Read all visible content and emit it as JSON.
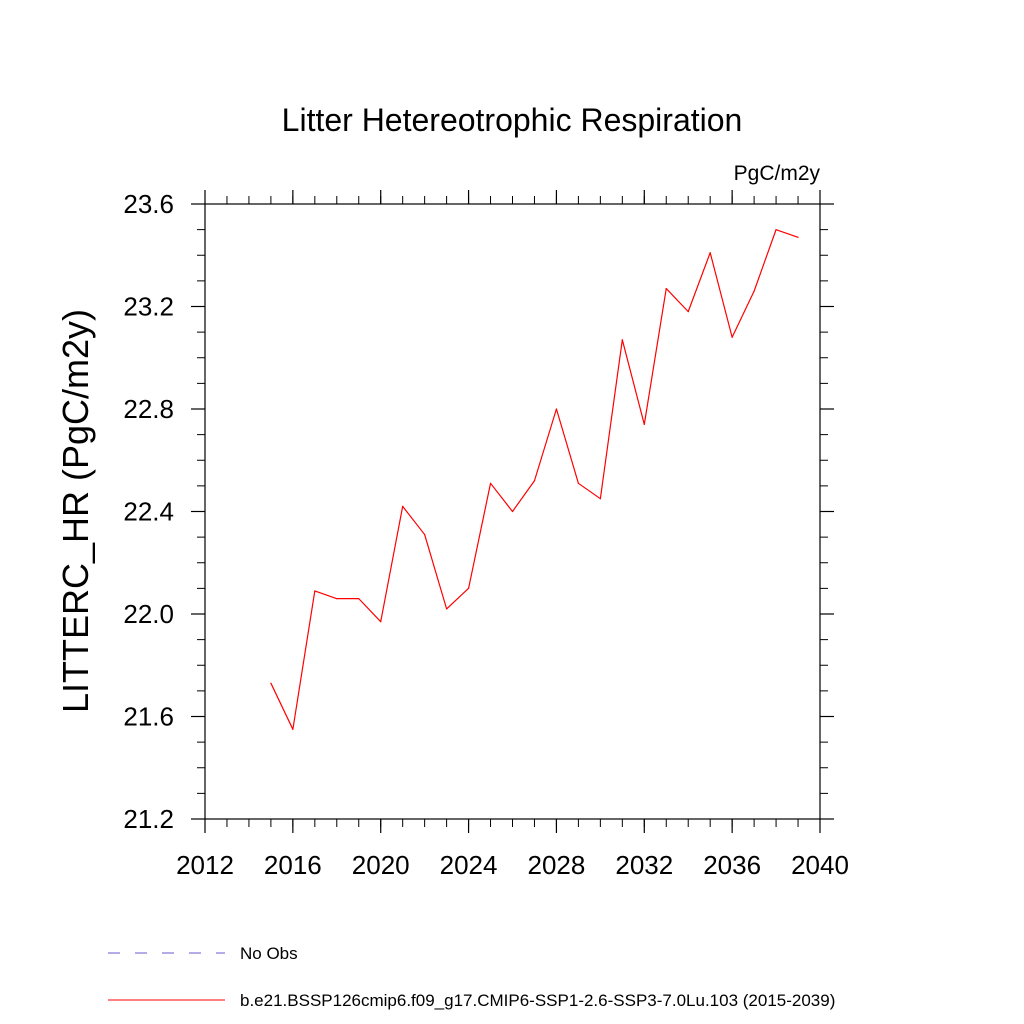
{
  "chart_data": {
    "type": "line",
    "title": "Litter Hetereotrophic Respiration",
    "units_label": "PgC/m2y",
    "xlabel": "",
    "ylabel": "LITTERC_HR  (PgC/m2y)",
    "xlim": [
      2012,
      2040
    ],
    "ylim": [
      21.2,
      23.6
    ],
    "x_ticks": [
      2012,
      2016,
      2020,
      2024,
      2028,
      2032,
      2036,
      2040
    ],
    "y_ticks": [
      21.2,
      21.6,
      22.0,
      22.4,
      22.8,
      23.2,
      23.6
    ],
    "x_tick_labels": [
      "2012",
      "2016",
      "2020",
      "2024",
      "2028",
      "2032",
      "2036",
      "2040"
    ],
    "y_tick_labels": [
      "21.2",
      "21.6",
      "22.0",
      "22.4",
      "22.8",
      "23.2",
      "23.6"
    ],
    "x_minor_step": 1,
    "y_minor_step": 0.1,
    "grid": false,
    "legend_position": "bottom",
    "series": [
      {
        "name": "b.e21.BSSP126cmip6.f09_g17.CMIP6-SSP1-2.6-SSP3-7.0Lu.103 (2015-2039)",
        "color": "#ff0000",
        "dash": "solid",
        "x": [
          2015,
          2016,
          2017,
          2018,
          2019,
          2020,
          2021,
          2022,
          2023,
          2024,
          2025,
          2026,
          2027,
          2028,
          2029,
          2030,
          2031,
          2032,
          2033,
          2034,
          2035,
          2036,
          2037,
          2038,
          2039
        ],
        "y": [
          21.73,
          21.55,
          22.09,
          22.06,
          22.06,
          21.97,
          22.42,
          22.31,
          22.02,
          22.1,
          22.51,
          22.4,
          22.52,
          22.8,
          22.51,
          22.45,
          23.07,
          22.74,
          23.27,
          23.18,
          23.41,
          23.08,
          23.26,
          23.5,
          23.47
        ]
      }
    ],
    "legend": [
      {
        "label": "No Obs",
        "color": "#6a5acd",
        "dash": "dashed"
      },
      {
        "label": "b.e21.BSSP126cmip6.f09_g17.CMIP6-SSP1-2.6-SSP3-7.0Lu.103 (2015-2039)",
        "color": "#ff0000",
        "dash": "solid"
      }
    ]
  }
}
